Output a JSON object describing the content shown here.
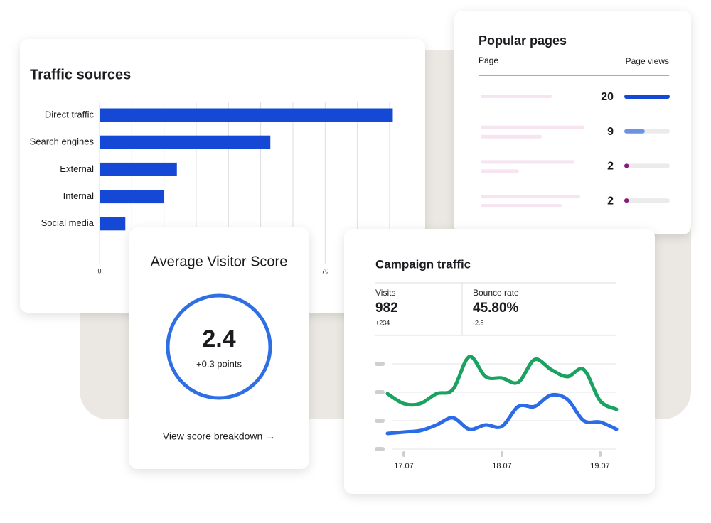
{
  "traffic_sources": {
    "type": "bar",
    "orientation": "horizontal",
    "title": "Traffic sources",
    "categories": [
      "Direct traffic",
      "Search engines",
      "External",
      "Internal",
      "Social media"
    ],
    "values": [
      91,
      53,
      24,
      20,
      8
    ],
    "color": "#1648d6",
    "xlim": [
      0,
      92
    ],
    "xticks": [
      0,
      70
    ],
    "xgrid": [
      0,
      10,
      20,
      30,
      40,
      50,
      60,
      70,
      80,
      90
    ]
  },
  "popular_pages": {
    "title": "Popular pages",
    "columns": [
      "Page",
      "Page views"
    ],
    "values": [
      20,
      9,
      2,
      2
    ],
    "colors": [
      "#1648d6",
      "#6a93e6",
      "#8b1a7a",
      "#8b1a7a"
    ],
    "xlim": [
      0,
      20
    ]
  },
  "visitor_score": {
    "title": "Average Visitor Score",
    "value": 2.4,
    "change": "+0.3 points",
    "link": "View score breakdown →",
    "color": "#2f6fe4"
  },
  "campaign_traffic": {
    "title": "Campaign traffic",
    "stats": [
      {
        "label": "Visits",
        "value": "982",
        "change": "+234"
      },
      {
        "label": "Bounce rate",
        "value": "45.80%",
        "change": "-2.8"
      }
    ],
    "chart_data": {
      "type": "line",
      "categories": [
        null,
        "17.07",
        null,
        null,
        null,
        null,
        null,
        "18.07",
        null,
        null,
        null,
        null,
        null,
        "19.07",
        null
      ],
      "series": [
        {
          "color": "#1aa260",
          "values": [
            1.95,
            1.6,
            1.6,
            1.95,
            2.1,
            3.25,
            2.55,
            2.5,
            2.35,
            3.15,
            2.8,
            2.55,
            2.8,
            1.7,
            1.4
          ]
        },
        {
          "color": "#2b6be6",
          "values": [
            0.55,
            0.6,
            0.65,
            0.85,
            1.1,
            0.7,
            0.85,
            0.8,
            1.5,
            1.5,
            1.9,
            1.75,
            1.0,
            0.95,
            0.7
          ]
        }
      ],
      "ylim": [
        0,
        3.4
      ],
      "yticks": [
        0,
        1,
        2,
        3
      ],
      "grid": true
    }
  }
}
